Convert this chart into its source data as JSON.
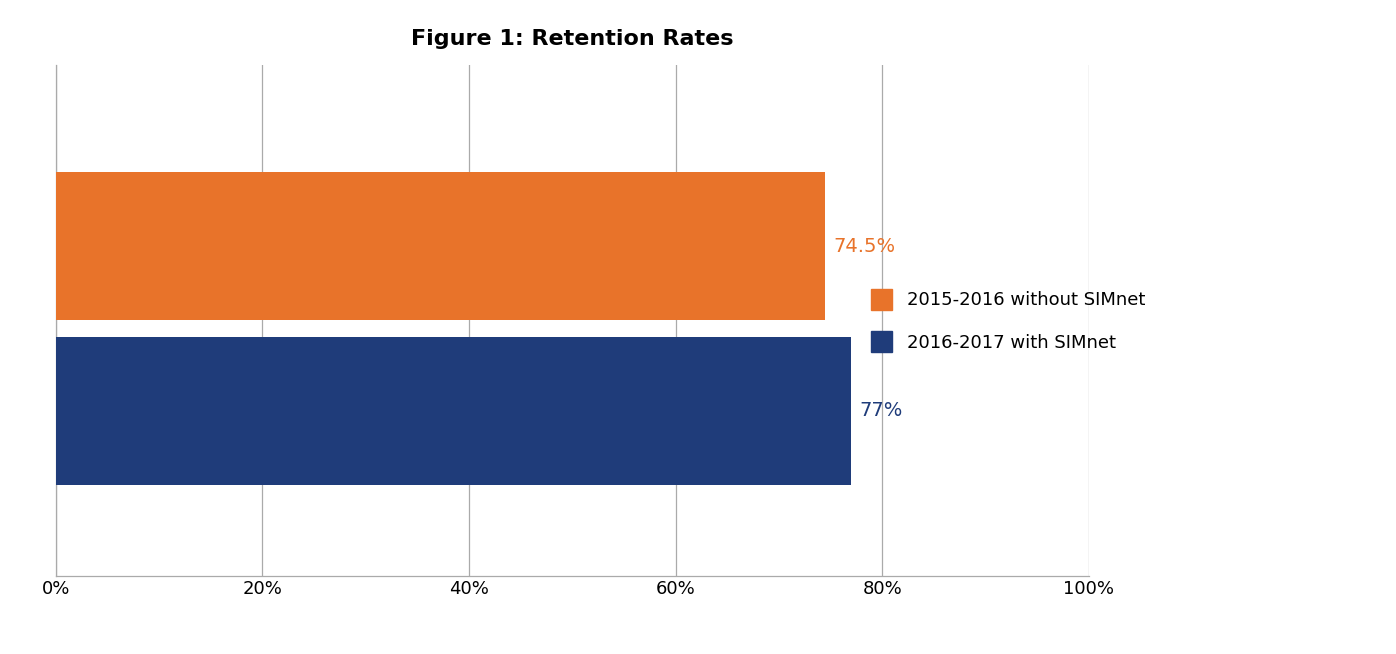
{
  "title": "Figure 1: Retention Rates",
  "categories": [
    "2015-2016 without SIMnet",
    "2016-2017 with SIMnet"
  ],
  "values": [
    0.745,
    0.77
  ],
  "bar_colors": [
    "#E8732A",
    "#1F3C7A"
  ],
  "labels": [
    "74.5%",
    "77%"
  ],
  "label_colors": [
    "#E8732A",
    "#1F3C7A"
  ],
  "xlim": [
    0,
    1.0
  ],
  "xticks": [
    0,
    0.2,
    0.4,
    0.6,
    0.8,
    1.0
  ],
  "xticklabels": [
    "0%",
    "20%",
    "40%",
    "60%",
    "80%",
    "100%"
  ],
  "title_fontsize": 16,
  "tick_fontsize": 13,
  "label_fontsize": 14,
  "legend_fontsize": 13,
  "bar_height": 0.45,
  "background_color": "#ffffff",
  "grid_color": "#aaaaaa",
  "legend_labels": [
    "2015-2016 without SIMnet",
    "2016-2017 with SIMnet"
  ],
  "legend_colors": [
    "#E8732A",
    "#1F3C7A"
  ]
}
